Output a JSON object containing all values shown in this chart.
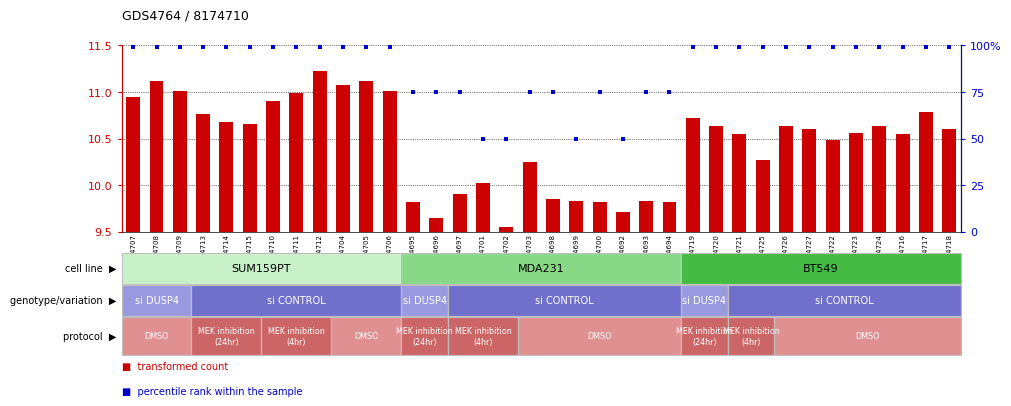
{
  "title": "GDS4764 / 8174710",
  "samples": [
    "GSM1024707",
    "GSM1024708",
    "GSM1024709",
    "GSM1024713",
    "GSM1024714",
    "GSM1024715",
    "GSM1024710",
    "GSM1024711",
    "GSM1024712",
    "GSM1024704",
    "GSM1024705",
    "GSM1024706",
    "GSM1024695",
    "GSM1024696",
    "GSM1024697",
    "GSM1024701",
    "GSM1024702",
    "GSM1024703",
    "GSM1024698",
    "GSM1024699",
    "GSM1024700",
    "GSM1024692",
    "GSM1024693",
    "GSM1024694",
    "GSM1024719",
    "GSM1024720",
    "GSM1024721",
    "GSM1024725",
    "GSM1024726",
    "GSM1024727",
    "GSM1024722",
    "GSM1024723",
    "GSM1024724",
    "GSM1024716",
    "GSM1024717",
    "GSM1024718"
  ],
  "bar_values": [
    10.95,
    11.12,
    11.01,
    10.76,
    10.68,
    10.66,
    10.9,
    10.99,
    11.23,
    11.08,
    11.12,
    11.01,
    9.82,
    9.65,
    9.9,
    10.02,
    9.55,
    10.25,
    9.85,
    9.83,
    9.82,
    9.71,
    9.83,
    9.82,
    10.72,
    10.63,
    10.55,
    10.27,
    10.63,
    10.6,
    10.48,
    10.56,
    10.63,
    10.55,
    10.78,
    10.6
  ],
  "percentile_values": [
    99,
    99,
    99,
    99,
    99,
    99,
    99,
    99,
    99,
    99,
    99,
    99,
    75,
    75,
    75,
    50,
    50,
    75,
    75,
    50,
    75,
    50,
    75,
    75,
    99,
    99,
    99,
    99,
    99,
    99,
    99,
    99,
    99,
    99,
    99,
    99
  ],
  "ylim_left": [
    9.5,
    11.5
  ],
  "ylim_right": [
    0,
    100
  ],
  "yticks_left": [
    9.5,
    10.0,
    10.5,
    11.0,
    11.5
  ],
  "yticks_right": [
    0,
    25,
    50,
    75,
    100
  ],
  "bar_color": "#cc0000",
  "dot_color": "#0000cc",
  "cell_line_groups": [
    {
      "label": "SUM159PT",
      "start": 0,
      "end": 11,
      "color": "#c8f0c8"
    },
    {
      "label": "MDA231",
      "start": 12,
      "end": 23,
      "color": "#88d888"
    },
    {
      "label": "BT549",
      "start": 24,
      "end": 35,
      "color": "#44bb44"
    }
  ],
  "genotype_groups": [
    {
      "label": "si DUSP4",
      "start": 0,
      "end": 2,
      "color": "#9999e0"
    },
    {
      "label": "si CONTROL",
      "start": 3,
      "end": 11,
      "color": "#7070cc"
    },
    {
      "label": "si DUSP4",
      "start": 12,
      "end": 13,
      "color": "#9999e0"
    },
    {
      "label": "si CONTROL",
      "start": 14,
      "end": 23,
      "color": "#7070cc"
    },
    {
      "label": "si DUSP4",
      "start": 24,
      "end": 25,
      "color": "#9999e0"
    },
    {
      "label": "si CONTROL",
      "start": 26,
      "end": 35,
      "color": "#7070cc"
    }
  ],
  "protocol_groups": [
    {
      "label": "DMSO",
      "start": 0,
      "end": 2,
      "color": "#e09090"
    },
    {
      "label": "MEK inhibition\n(24hr)",
      "start": 3,
      "end": 5,
      "color": "#cc6666"
    },
    {
      "label": "MEK inhibition\n(4hr)",
      "start": 6,
      "end": 8,
      "color": "#cc6666"
    },
    {
      "label": "DMSO",
      "start": 9,
      "end": 11,
      "color": "#e09090"
    },
    {
      "label": "MEK inhibition\n(24hr)",
      "start": 12,
      "end": 13,
      "color": "#cc6666"
    },
    {
      "label": "MEK inhibition\n(4hr)",
      "start": 14,
      "end": 16,
      "color": "#cc6666"
    },
    {
      "label": "DMSO",
      "start": 17,
      "end": 23,
      "color": "#e09090"
    },
    {
      "label": "MEK inhibition\n(24hr)",
      "start": 24,
      "end": 25,
      "color": "#cc6666"
    },
    {
      "label": "MEK inhibition\n(4hr)",
      "start": 26,
      "end": 27,
      "color": "#cc6666"
    },
    {
      "label": "DMSO",
      "start": 28,
      "end": 35,
      "color": "#e09090"
    }
  ],
  "row_labels": [
    "cell line",
    "genotype/variation",
    "protocol"
  ]
}
